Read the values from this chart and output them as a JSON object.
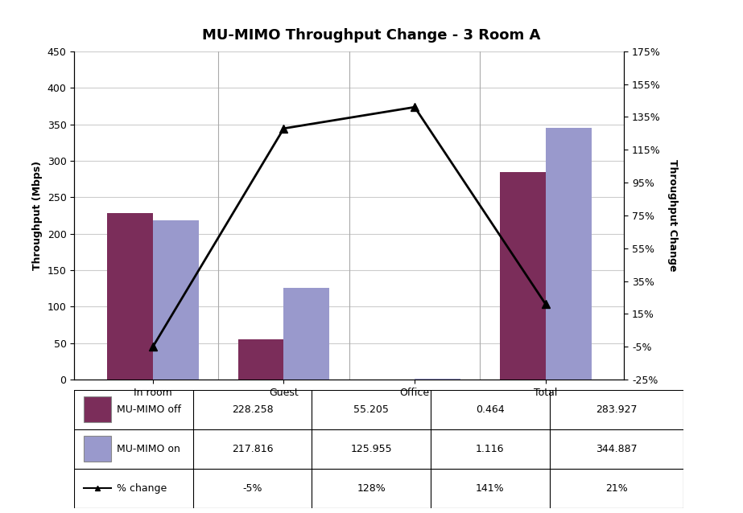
{
  "title": "MU-MIMO Throughput Change - 3 Room A",
  "categories": [
    "In room",
    "Guest",
    "Office",
    "Total"
  ],
  "mimo_off": [
    228.258,
    55.205,
    0.464,
    283.927
  ],
  "mimo_on": [
    217.816,
    125.955,
    1.116,
    344.887
  ],
  "pct_change": [
    -0.05,
    1.28,
    1.41,
    0.21
  ],
  "mimo_off_color": "#7B2D5A",
  "mimo_on_color": "#9999CC",
  "line_color": "#000000",
  "bar_width": 0.35,
  "left_ylim": [
    0,
    450
  ],
  "left_yticks": [
    0,
    50,
    100,
    150,
    200,
    250,
    300,
    350,
    400,
    450
  ],
  "right_ylim": [
    -0.25,
    1.75
  ],
  "right_yticks": [
    -0.25,
    -0.05,
    0.15,
    0.35,
    0.55,
    0.75,
    0.95,
    1.15,
    1.35,
    1.55,
    1.75
  ],
  "right_yticklabels": [
    "-25%",
    "-5%",
    "15%",
    "35%",
    "55%",
    "75%",
    "95%",
    "115%",
    "135%",
    "155%",
    "175%"
  ],
  "ylabel_left": "Throughput (Mbps)",
  "ylabel_right": "Throughput Change",
  "table_data": [
    [
      "MU-MIMO off",
      "228.258",
      "55.205",
      "0.464",
      "283.927"
    ],
    [
      "MU-MIMO on",
      "217.816",
      "125.955",
      "1.116",
      "344.887"
    ],
    [
      "% change",
      "-5%",
      "128%",
      "141%",
      "21%"
    ]
  ],
  "title_fontsize": 13,
  "axis_label_fontsize": 9,
  "tick_fontsize": 9,
  "table_fontsize": 9
}
